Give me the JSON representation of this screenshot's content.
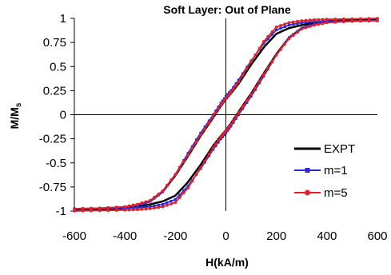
{
  "chart_data": {
    "type": "line",
    "title": "Soft Layer: Out of Plane",
    "xlabel": "H(kA/m)",
    "ylabel_main": "M/M",
    "ylabel_sub": "s",
    "xlim": [
      -600,
      600
    ],
    "ylim": [
      -1,
      1
    ],
    "x_ticks": [
      "-600",
      "-400",
      "-200",
      "0",
      "200",
      "400",
      "600"
    ],
    "y_ticks": [
      "1",
      "0.75",
      "0.5",
      "0.25",
      "0",
      "-0.25",
      "-0.5",
      "-0.75",
      "-1"
    ],
    "legend_position": "lower-right",
    "grid": false,
    "series": [
      {
        "name": "EXPT",
        "color": "#000000",
        "marker": "none",
        "descending": {
          "x": [
            600,
            500,
            400,
            350,
            300,
            250,
            200,
            150,
            100,
            50,
            20,
            0,
            -20,
            -50,
            -100,
            -150,
            -200,
            -250,
            -300,
            -350,
            -400,
            -500,
            -600
          ],
          "y": [
            0.99,
            0.985,
            0.97,
            0.955,
            0.93,
            0.9,
            0.84,
            0.7,
            0.52,
            0.32,
            0.22,
            0.16,
            0.09,
            -0.03,
            -0.22,
            -0.43,
            -0.63,
            -0.8,
            -0.9,
            -0.94,
            -0.96,
            -0.975,
            -0.98
          ]
        },
        "ascending": {
          "x": [
            -600,
            -500,
            -400,
            -350,
            -300,
            -250,
            -200,
            -150,
            -100,
            -50,
            -20,
            0,
            20,
            50,
            100,
            150,
            200,
            250,
            300,
            350,
            400,
            500,
            600
          ]
        }
      },
      {
        "name": "m=1",
        "color": "#2b2bd4",
        "marker": "square",
        "descending": {
          "x": [
            600,
            500,
            400,
            350,
            300,
            250,
            200,
            150,
            100,
            50,
            20,
            0,
            -20,
            -50,
            -100,
            -150,
            -200,
            -250,
            -300,
            -350,
            -400,
            -500,
            -600
          ],
          "y": [
            0.98,
            0.975,
            0.97,
            0.965,
            0.955,
            0.93,
            0.88,
            0.74,
            0.56,
            0.36,
            0.25,
            0.19,
            0.12,
            0.0,
            -0.19,
            -0.4,
            -0.62,
            -0.8,
            -0.9,
            -0.94,
            -0.96,
            -0.97,
            -0.975
          ]
        }
      },
      {
        "name": "m=5",
        "color": "#e0202a",
        "marker": "circle",
        "descending": {
          "x": [
            600,
            500,
            400,
            350,
            300,
            250,
            200,
            150,
            100,
            50,
            20,
            0,
            -20,
            -50,
            -100,
            -150,
            -200,
            -250,
            -300,
            -350,
            -400,
            -500,
            -600
          ],
          "y": [
            1.0,
            0.995,
            0.99,
            0.985,
            0.975,
            0.955,
            0.91,
            0.76,
            0.55,
            0.34,
            0.23,
            0.17,
            0.1,
            -0.02,
            -0.21,
            -0.42,
            -0.62,
            -0.79,
            -0.89,
            -0.93,
            -0.955,
            -0.97,
            -0.975
          ]
        }
      }
    ]
  }
}
